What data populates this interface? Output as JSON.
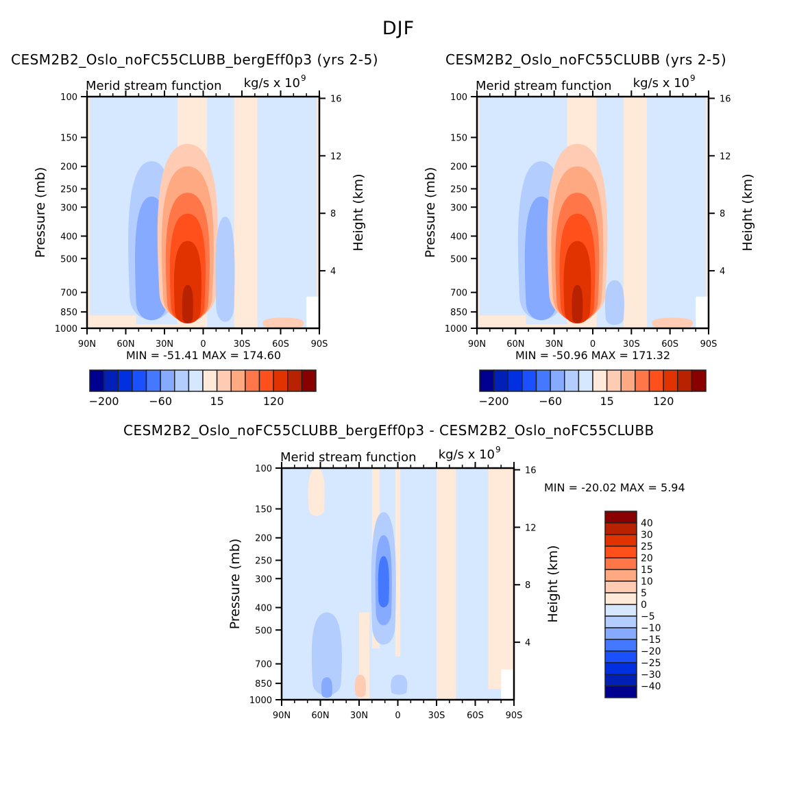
{
  "figure": {
    "title": "DJF"
  },
  "chart_data": [
    {
      "type": "heatmap",
      "id": "panel-a",
      "title": "CESM2B2_Oslo_noFC55CLUBB_bergEff0p3 (yrs 2-5)",
      "left_string": "Merid stream function",
      "right_string": "kg/s x 10",
      "right_string_exponent": "9",
      "xlabel": "",
      "ylabel": "Pressure (mb)",
      "ylabel_right": "Height (km)",
      "x_ticks": [
        "90N",
        "60N",
        "30N",
        "0",
        "30S",
        "60S",
        "90S"
      ],
      "x_tick_values": [
        90,
        60,
        30,
        0,
        -30,
        -60,
        -90
      ],
      "y_ticks": [
        "100",
        "150",
        "200",
        "250",
        "300",
        "400",
        "500",
        "700",
        "850",
        "1000"
      ],
      "y_tick_values": [
        100,
        150,
        200,
        250,
        300,
        400,
        500,
        700,
        850,
        1000
      ],
      "y_right_ticks": [
        "16",
        "12",
        "8",
        "4"
      ],
      "y_right_tick_values": [
        16,
        12,
        8,
        4
      ],
      "ylim": [
        1000,
        100
      ],
      "xlim": [
        90,
        -90
      ],
      "stats": "MIN = -51.41   MAX = 174.60",
      "min": -51.41,
      "max": 174.6,
      "colorbar": {
        "orientation": "horizontal",
        "labels": [
          "-200",
          "-60",
          "15",
          "120"
        ],
        "levels": [
          -200,
          -160,
          -120,
          -80,
          -60,
          -40,
          -20,
          0,
          15,
          30,
          60,
          80,
          120,
          160,
          200
        ]
      },
      "features": [
        {
          "kind": "negative-cell",
          "lat_center": 40,
          "p_top": 230,
          "p_bottom": 980,
          "peak": -51.41
        },
        {
          "kind": "positive-cell",
          "lat_center": 13,
          "p_top": 160,
          "p_bottom": 1000,
          "peak": 174.6
        },
        {
          "kind": "weak-negative-cell",
          "lat_center": -20,
          "p_top": 300,
          "p_bottom": 1000
        },
        {
          "kind": "weak-positive",
          "lat_center": -62,
          "p_top": 880,
          "p_bottom": 1000
        }
      ]
    },
    {
      "type": "heatmap",
      "id": "panel-b",
      "title": "CESM2B2_Oslo_noFC55CLUBB (yrs 2-5)",
      "left_string": "Merid stream function",
      "right_string": "kg/s x 10",
      "right_string_exponent": "9",
      "ylabel": "Pressure (mb)",
      "ylabel_right": "Height (km)",
      "x_ticks": [
        "90N",
        "60N",
        "30N",
        "0",
        "30S",
        "60S",
        "90S"
      ],
      "y_ticks": [
        "100",
        "150",
        "200",
        "250",
        "300",
        "400",
        "500",
        "700",
        "850",
        "1000"
      ],
      "y_right_ticks": [
        "16",
        "12",
        "8",
        "4"
      ],
      "ylim": [
        1000,
        100
      ],
      "xlim": [
        90,
        -90
      ],
      "stats": "MIN = -50.96   MAX = 171.32",
      "min": -50.96,
      "max": 171.32,
      "colorbar": {
        "orientation": "horizontal",
        "labels": [
          "-200",
          "-60",
          "15",
          "120"
        ],
        "levels": [
          -200,
          -160,
          -120,
          -80,
          -60,
          -40,
          -20,
          0,
          15,
          30,
          60,
          80,
          120,
          160,
          200
        ]
      }
    },
    {
      "type": "heatmap",
      "id": "panel-diff",
      "title": "CESM2B2_Oslo_noFC55CLUBB_bergEff0p3 - CESM2B2_Oslo_noFC55CLUBB",
      "left_string": "Merid stream function",
      "right_string": "kg/s x 10",
      "right_string_exponent": "9",
      "ylabel": "Pressure (mb)",
      "ylabel_right": "Height (km)",
      "x_ticks": [
        "90N",
        "60N",
        "30N",
        "0",
        "30S",
        "60S",
        "90S"
      ],
      "y_ticks": [
        "100",
        "150",
        "200",
        "250",
        "300",
        "400",
        "500",
        "700",
        "850",
        "1000"
      ],
      "y_right_ticks": [
        "16",
        "12",
        "8",
        "4"
      ],
      "ylim": [
        1000,
        100
      ],
      "xlim": [
        90,
        -90
      ],
      "stats": "MIN = -20.02   MAX =    5.94",
      "min": -20.02,
      "max": 5.94,
      "colorbar": {
        "orientation": "vertical",
        "labels": [
          "40",
          "30",
          "25",
          "20",
          "15",
          "10",
          "5",
          "0",
          "-5",
          "-10",
          "-15",
          "-20",
          "-25",
          "-30",
          "-40"
        ],
        "levels": [
          40,
          30,
          25,
          20,
          15,
          10,
          5,
          0,
          -5,
          -10,
          -15,
          -20,
          -25,
          -30,
          -40
        ]
      }
    }
  ],
  "palette": [
    "#000090",
    "#0020b8",
    "#0030e0",
    "#1a50ff",
    "#4478ff",
    "#85aaff",
    "#b3cdff",
    "#d5e8ff",
    "#ffe9d8",
    "#ffcbb3",
    "#ffa982",
    "#ff7648",
    "#ff501c",
    "#e03300",
    "#b82200",
    "#880000"
  ]
}
